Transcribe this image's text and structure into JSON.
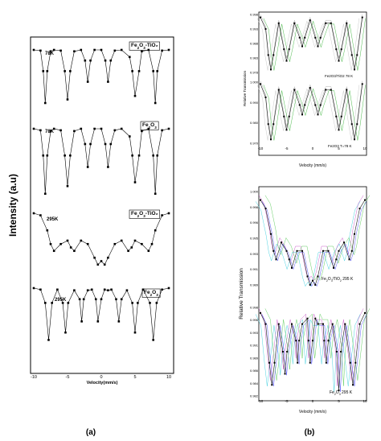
{
  "panel_labels": [
    "(a)",
    "(b)"
  ],
  "chart_data": [
    {
      "type": "scatter",
      "panel": "(a)",
      "ylabel": "Intensity (a.u)",
      "xlabel": "Velocity(mm/s)",
      "xlim": [
        -10,
        10
      ],
      "xticks": [
        "-10",
        "-5",
        "0",
        "5",
        "10"
      ],
      "grid": false,
      "series": [
        {
          "name": "Fe2O3-TiO2",
          "legend": "Fe₂O₃-TiO₂",
          "temp": "78K",
          "x": [
            -10,
            -9,
            -8.6,
            -8.3,
            -8,
            -7.5,
            -7,
            -6,
            -5.4,
            -5,
            -4.6,
            -4,
            -3,
            -2.4,
            -2,
            -1.6,
            -1,
            0,
            0.6,
            1,
            1.4,
            2,
            3,
            4.2,
            4.6,
            5,
            5.6,
            6,
            7,
            7.7,
            8,
            8.3,
            9,
            10
          ],
          "y": [
            1,
            0.99,
            0.7,
            0.25,
            0.7,
            0.98,
            1,
            0.99,
            0.7,
            0.3,
            0.7,
            0.98,
            1,
            0.85,
            0.55,
            0.85,
            1,
            1,
            0.85,
            0.55,
            0.85,
            0.99,
            1,
            0.9,
            0.7,
            0.35,
            0.7,
            0.98,
            1,
            0.7,
            0.25,
            0.7,
            0.99,
            1
          ]
        },
        {
          "name": "Fe2O3",
          "legend": "Fe₂O₃",
          "temp": "78K",
          "x": [
            -10,
            -9,
            -8.6,
            -8.3,
            -8,
            -7.5,
            -7,
            -6,
            -5.4,
            -5,
            -4.6,
            -4,
            -3,
            -2.4,
            -2,
            -1.6,
            -1,
            0,
            0.6,
            1,
            1.4,
            2,
            3,
            4.2,
            4.6,
            5,
            5.6,
            6,
            7,
            7.7,
            8,
            8.3,
            9,
            10
          ],
          "y": [
            1,
            0.98,
            0.65,
            0.15,
            0.65,
            0.97,
            1,
            0.98,
            0.65,
            0.25,
            0.65,
            0.97,
            1,
            0.8,
            0.5,
            0.8,
            1,
            1,
            0.8,
            0.5,
            0.8,
            0.98,
            1,
            0.9,
            0.65,
            0.3,
            0.65,
            0.97,
            1,
            0.65,
            0.15,
            0.65,
            0.98,
            1
          ]
        },
        {
          "name": "Fe2O3-TiO2",
          "legend": "Fe₂O₃-TiO₂",
          "temp": "295K",
          "x": [
            -10,
            -9,
            -8,
            -7.5,
            -7,
            -6,
            -5,
            -4.5,
            -4,
            -3,
            -2,
            -1,
            -0.5,
            0,
            0.5,
            1,
            2,
            3,
            4,
            4.5,
            5,
            6,
            7,
            7.5,
            8,
            9,
            10
          ],
          "y": [
            1,
            0.97,
            0.75,
            0.55,
            0.45,
            0.55,
            0.6,
            0.5,
            0.45,
            0.6,
            0.55,
            0.35,
            0.25,
            0.3,
            0.25,
            0.35,
            0.55,
            0.6,
            0.45,
            0.5,
            0.6,
            0.55,
            0.45,
            0.55,
            0.75,
            0.97,
            1
          ]
        },
        {
          "name": "Fe2O3",
          "legend": "Fe₂O₃",
          "temp": "295K",
          "x": [
            -10,
            -9,
            -8.3,
            -7.8,
            -7.3,
            -6.5,
            -5.7,
            -5.3,
            -4.9,
            -4,
            -3.2,
            -2.9,
            -2.6,
            -2,
            -1.4,
            -0.8,
            -0.5,
            0,
            0.5,
            1,
            1.5,
            2.2,
            2.6,
            3,
            3.8,
            4.6,
            5,
            5.4,
            6.2,
            7.2,
            7.7,
            8.2,
            9,
            10
          ],
          "y": [
            1,
            0.98,
            0.8,
            0.3,
            0.8,
            0.98,
            0.8,
            0.4,
            0.8,
            0.97,
            0.85,
            0.55,
            0.85,
            0.97,
            0.98,
            0.85,
            0.55,
            0.85,
            0.98,
            0.97,
            0.98,
            0.85,
            0.55,
            0.85,
            0.97,
            0.8,
            0.4,
            0.8,
            0.98,
            0.8,
            0.3,
            0.8,
            0.98,
            1
          ]
        }
      ]
    },
    {
      "type": "scatter",
      "panel": "(b) top",
      "ylabel": "Relative Transmission",
      "xlabel": "Velocity (mm/s)",
      "xlim": [
        -10,
        10
      ],
      "xticks": [
        "-10",
        "-5",
        "0",
        "5",
        "10"
      ],
      "grid": false,
      "subplots": [
        {
          "label": "Fe2O3/TiO2 78 K",
          "ylim": [
            0.978,
            0.998
          ],
          "yticks": [
            "0.998",
            "0.993",
            "0.988",
            "0.983",
            "0.978"
          ],
          "x": [
            -10,
            -9,
            -8.5,
            -8,
            -7.5,
            -6.5,
            -5.5,
            -5,
            -4.5,
            -3.5,
            -2.5,
            -2,
            -1.5,
            -0.5,
            0.5,
            1,
            1.5,
            2.5,
            3.5,
            4.5,
            5,
            5.5,
            6.5,
            7.5,
            8,
            8.5,
            9.5
          ],
          "y": [
            0.997,
            0.993,
            0.984,
            0.979,
            0.984,
            0.995,
            0.986,
            0.982,
            0.986,
            0.995,
            0.99,
            0.987,
            0.99,
            0.996,
            0.99,
            0.987,
            0.99,
            0.995,
            0.995,
            0.986,
            0.982,
            0.986,
            0.995,
            0.984,
            0.979,
            0.984,
            0.997
          ]
        },
        {
          "label": "Fe2O3 T=78 K",
          "ylim": [
            0.968,
            1.0
          ],
          "yticks": [
            "1.000",
            "0.990",
            "0.980",
            "0.970"
          ],
          "x": [
            -10,
            -9,
            -8.5,
            -8,
            -7.5,
            -6.5,
            -5.5,
            -5,
            -4.5,
            -3.5,
            -2.5,
            -2,
            -1.5,
            -0.5,
            0.5,
            1,
            1.5,
            2.5,
            3.5,
            4.5,
            5,
            5.5,
            6.5,
            7.5,
            8,
            8.5,
            9.5
          ],
          "y": [
            0.999,
            0.992,
            0.978,
            0.97,
            0.978,
            0.996,
            0.982,
            0.975,
            0.982,
            0.996,
            0.988,
            0.983,
            0.988,
            0.997,
            0.988,
            0.983,
            0.988,
            0.996,
            0.996,
            0.982,
            0.975,
            0.982,
            0.996,
            0.978,
            0.97,
            0.978,
            0.999
          ]
        }
      ]
    },
    {
      "type": "scatter",
      "panel": "(b) bottom",
      "ylabel": "Relative Transmission",
      "xlabel": "Velocity (mm/s)",
      "xlim": [
        -10,
        10
      ],
      "xticks": [
        "-10",
        "-5",
        "0",
        "5",
        "10"
      ],
      "grid": false,
      "subplots": [
        {
          "label": "Fe2O3/TiO2 295 K",
          "label_parts": [
            "Fe",
            "2",
            "O",
            "3",
            "/TiO",
            "2",
            " 295 K"
          ],
          "ylim": [
            0.989,
            1.0
          ],
          "yticks": [
            "1.000",
            "0.998",
            "0.996",
            "0.995",
            "0.993",
            "0.991",
            "0.989"
          ],
          "x": [
            -10,
            -9,
            -8,
            -7.5,
            -7,
            -6,
            -5,
            -4.5,
            -4,
            -3,
            -2,
            -1,
            -0.5,
            0,
            0.5,
            1,
            2,
            3,
            4,
            4.5,
            5,
            6,
            7,
            7.5,
            8,
            9,
            10
          ],
          "y": [
            0.999,
            0.998,
            0.995,
            0.993,
            0.992,
            0.994,
            0.993,
            0.992,
            0.991,
            0.993,
            0.993,
            0.99,
            0.989,
            0.9895,
            0.989,
            0.99,
            0.993,
            0.993,
            0.991,
            0.992,
            0.993,
            0.994,
            0.992,
            0.993,
            0.995,
            0.998,
            0.999
          ]
        },
        {
          "label": "Fe2O3 295 K",
          "label_parts": [
            "Fe",
            "2",
            "O",
            "3",
            " 295 K"
          ],
          "ylim": [
            0.982,
            0.998
          ],
          "yticks": [
            "0.998",
            "0.996",
            "0.993",
            "0.991",
            "0.989",
            "0.986",
            "0.984",
            "0.982"
          ],
          "x": [
            -10,
            -9,
            -8.3,
            -7.8,
            -7.3,
            -6.5,
            -5.7,
            -5.3,
            -4.9,
            -4,
            -3.2,
            -2.9,
            -2.6,
            -2,
            -1,
            -0.8,
            -0.5,
            0,
            0.5,
            1,
            2,
            2.2,
            2.6,
            3,
            3.8,
            4.6,
            5,
            5.4,
            6.2,
            7.2,
            7.7,
            8.2,
            9,
            10
          ],
          "y": [
            0.997,
            0.995,
            0.988,
            0.984,
            0.988,
            0.995,
            0.99,
            0.986,
            0.99,
            0.995,
            0.992,
            0.988,
            0.992,
            0.995,
            0.996,
            0.992,
            0.988,
            0.992,
            0.996,
            0.995,
            0.995,
            0.992,
            0.988,
            0.992,
            0.995,
            0.99,
            0.983,
            0.99,
            0.995,
            0.988,
            0.984,
            0.988,
            0.995,
            0.997
          ]
        }
      ]
    }
  ]
}
